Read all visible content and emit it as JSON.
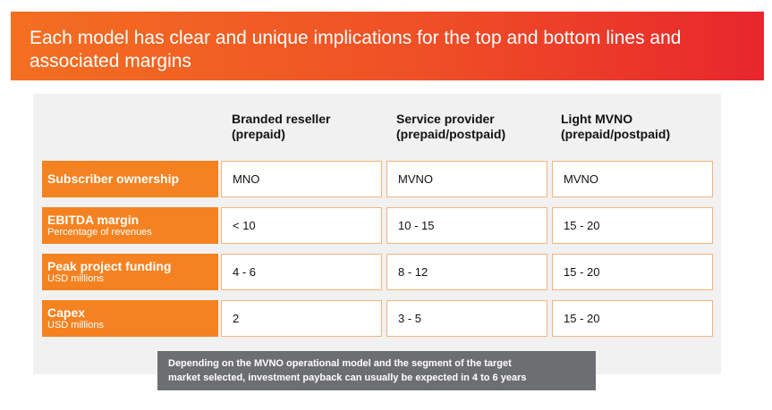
{
  "title": {
    "line1": "Each model has clear and unique implications for the top and bottom lines and",
    "line2": "associated margins"
  },
  "columns": [
    {
      "line1": "Branded reseller",
      "line2": "(prepaid)"
    },
    {
      "line1": "Service provider",
      "line2": "(prepaid/postpaid)"
    },
    {
      "line1": "Light MVNO",
      "line2": "(prepaid/postpaid)"
    }
  ],
  "rows": [
    {
      "label": "Subscriber ownership",
      "sublabel": "",
      "values": [
        "MNO",
        "MVNO",
        "MVNO"
      ]
    },
    {
      "label": "EBITDA margin",
      "sublabel": "Percentage of revenues",
      "values": [
        "< 10",
        "10 - 15",
        "15 - 20"
      ]
    },
    {
      "label": "Peak project funding",
      "sublabel": "USD millions",
      "values": [
        "4 - 6",
        "8 - 12",
        "15 - 20"
      ]
    },
    {
      "label": "Capex",
      "sublabel": "USD millions",
      "values": [
        "2",
        "3 - 5",
        "15 - 20"
      ]
    }
  ],
  "note": {
    "line1": "Depending on the MVNO operational model and the segment of the target",
    "line2": "market selected, investment payback can usually be expected in 4 to 6 years"
  },
  "colors": {
    "banner_start": "#f36f21",
    "banner_end": "#e8262c",
    "row_label_bg": "#f58220",
    "cell_border": "#f7b27a",
    "panel_bg": "#f1f1f2",
    "note_bg": "#6d6e71"
  }
}
